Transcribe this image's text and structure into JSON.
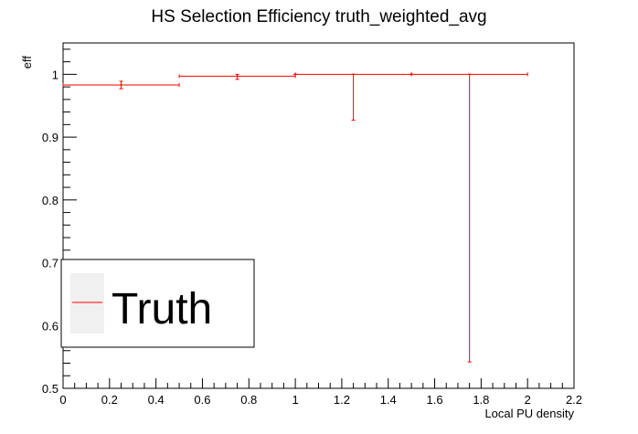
{
  "chart_data": {
    "type": "scatter",
    "title": "HS Selection Efficiency truth_weighted_avg",
    "xlabel": "Local PU density",
    "ylabel": "eff",
    "xlim": [
      0,
      2.2
    ],
    "ylim": [
      0.5,
      1.05
    ],
    "x_ticks": [
      "0",
      "0.2",
      "0.4",
      "0.6",
      "0.8",
      "1",
      "1.2",
      "1.4",
      "1.6",
      "1.8",
      "2",
      "2.2"
    ],
    "y_ticks": [
      "0.5",
      "0.6",
      "0.7",
      "0.8",
      "0.9",
      "1"
    ],
    "grid": false,
    "legend_position": "bottom-left",
    "series": [
      {
        "name": "Truth",
        "color": "#ff0000",
        "points": [
          {
            "x": 0.25,
            "xerr": 0.25,
            "y": 0.983,
            "yerr_low": 0.006,
            "yerr_high": 0.006
          },
          {
            "x": 0.75,
            "xerr": 0.25,
            "y": 0.997,
            "yerr_low": 0.005,
            "yerr_high": 0.003
          },
          {
            "x": 1.0,
            "xerr": 0.0,
            "y": 1.0,
            "yerr_low": 0.0,
            "yerr_high": 0.0
          },
          {
            "x": 1.25,
            "xerr": 0.25,
            "y": 1.0,
            "yerr_low": 0.073,
            "yerr_high": 0.0
          },
          {
            "x": 1.5,
            "xerr": 0.0,
            "y": 1.0,
            "yerr_low": 0.0,
            "yerr_high": 0.0
          },
          {
            "x": 1.75,
            "xerr": 0.25,
            "y": 1.0,
            "yerr_low": 0.458,
            "yerr_high": 0.0
          }
        ]
      }
    ]
  }
}
